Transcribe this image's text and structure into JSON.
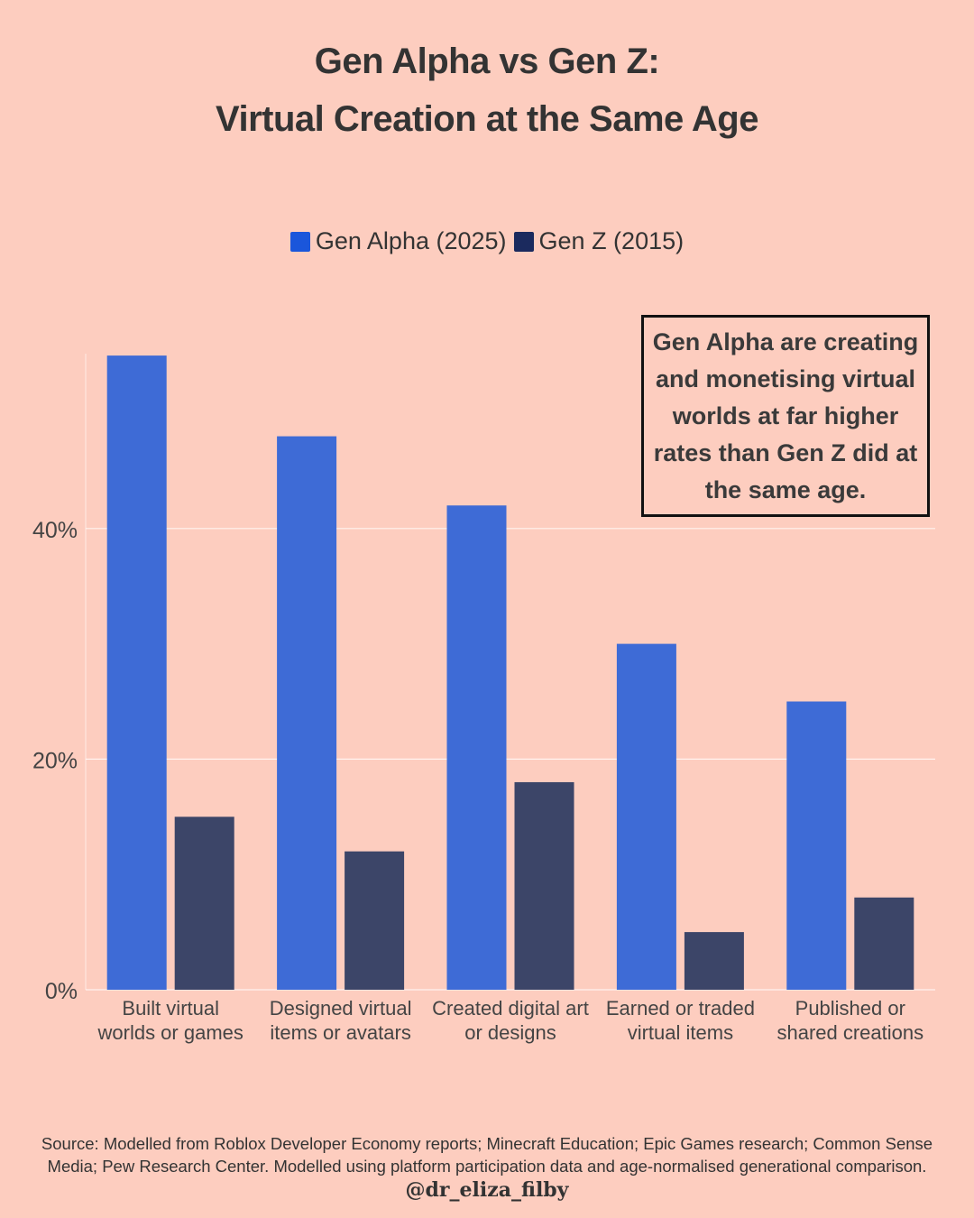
{
  "title": {
    "line1": "Gen Alpha vs Gen Z:",
    "line2": "Virtual Creation at the Same Age"
  },
  "legend": {
    "items": [
      {
        "label": "Gen Alpha (2025)",
        "color": "#1a56db"
      },
      {
        "label": "Gen Z (2015)",
        "color": "#1b2a5e"
      }
    ]
  },
  "annotation": {
    "text": "Gen Alpha are creating and monetising virtual worlds at far higher rates than Gen Z did at the same age."
  },
  "source": {
    "line1": "Source: Modelled from Roblox Developer Economy reports; Minecraft Education; Epic Games research; Common Sense",
    "line2": "Media; Pew Research Center. Modelled using platform participation data and age-normalised generational comparison."
  },
  "handle": "@dr_eliza_filby",
  "colors": {
    "background": "#fdcdbf",
    "gen_alpha_bar": "#3e6bd6",
    "gen_z_bar": "#3c4568",
    "grid": "#ffffff",
    "text": "#333333"
  },
  "chart_data": {
    "type": "bar",
    "categories": [
      [
        "Built virtual",
        "worlds or games"
      ],
      [
        "Designed virtual",
        "items or avatars"
      ],
      [
        "Created digital art",
        "or designs"
      ],
      [
        "Earned or traded",
        "virtual items"
      ],
      [
        "Published or",
        "shared creations"
      ]
    ],
    "series": [
      {
        "name": "Gen Alpha (2025)",
        "values": [
          55,
          48,
          42,
          30,
          25
        ]
      },
      {
        "name": "Gen Z (2015)",
        "values": [
          15,
          12,
          18,
          5,
          8
        ]
      }
    ],
    "yticks": [
      0,
      20,
      40
    ],
    "ytick_labels": [
      "0%",
      "20%",
      "40%"
    ],
    "ylim": [
      0,
      55
    ],
    "grid": true,
    "legend_position": "top-center"
  }
}
